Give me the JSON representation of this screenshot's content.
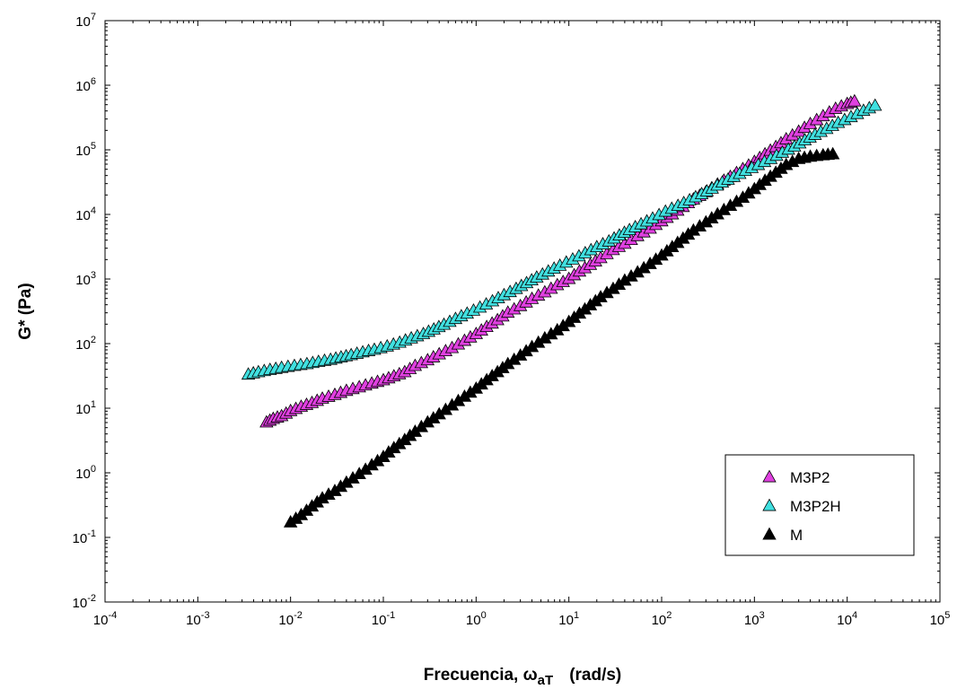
{
  "chart_data": {
    "type": "scatter",
    "title": "",
    "xlabel": "Frecuencia, ω",
    "xlabel_sub": "aT",
    "xlabel_units": "(rad/s)",
    "ylabel": "G* (Pa)",
    "xscale": "log",
    "yscale": "log",
    "xlim": [
      0.0001,
      100000
    ],
    "ylim": [
      0.01,
      10000000
    ],
    "x_ticks": [
      {
        "base": "10",
        "exp": "-4"
      },
      {
        "base": "10",
        "exp": "-3"
      },
      {
        "base": "10",
        "exp": "-2"
      },
      {
        "base": "10",
        "exp": "-1"
      },
      {
        "base": "10",
        "exp": "0"
      },
      {
        "base": "10",
        "exp": "1"
      },
      {
        "base": "10",
        "exp": "2"
      },
      {
        "base": "10",
        "exp": "3"
      },
      {
        "base": "10",
        "exp": "4"
      },
      {
        "base": "10",
        "exp": "5"
      }
    ],
    "y_ticks": [
      {
        "base": "10",
        "exp": "-2"
      },
      {
        "base": "10",
        "exp": "-1"
      },
      {
        "base": "10",
        "exp": "0"
      },
      {
        "base": "10",
        "exp": "1"
      },
      {
        "base": "10",
        "exp": "2"
      },
      {
        "base": "10",
        "exp": "3"
      },
      {
        "base": "10",
        "exp": "4"
      },
      {
        "base": "10",
        "exp": "5"
      },
      {
        "base": "10",
        "exp": "6"
      },
      {
        "base": "10",
        "exp": "7"
      }
    ],
    "grid": false,
    "legend_position": "bottom-right",
    "marker": "triangle",
    "series": [
      {
        "name": "M3P2",
        "color": "#e040e0",
        "points": [
          [
            0.0055,
            6
          ],
          [
            0.0065,
            6.8
          ],
          [
            0.008,
            7.5
          ],
          [
            0.01,
            9
          ],
          [
            0.013,
            10.5
          ],
          [
            0.017,
            12
          ],
          [
            0.022,
            14
          ],
          [
            0.03,
            16
          ],
          [
            0.04,
            18.5
          ],
          [
            0.055,
            21
          ],
          [
            0.075,
            24
          ],
          [
            0.1,
            27
          ],
          [
            0.13,
            31
          ],
          [
            0.17,
            36
          ],
          [
            0.22,
            45
          ],
          [
            0.3,
            55
          ],
          [
            0.4,
            68
          ],
          [
            0.55,
            85
          ],
          [
            0.75,
            110
          ],
          [
            1.0,
            140
          ],
          [
            1.3,
            180
          ],
          [
            1.7,
            230
          ],
          [
            2.2,
            300
          ],
          [
            3,
            380
          ],
          [
            4,
            490
          ],
          [
            5.5,
            620
          ],
          [
            7.5,
            800
          ],
          [
            10,
            1000
          ],
          [
            13,
            1300
          ],
          [
            17,
            1650
          ],
          [
            22,
            2100
          ],
          [
            30,
            2800
          ],
          [
            40,
            3500
          ],
          [
            55,
            4600
          ],
          [
            75,
            6000
          ],
          [
            100,
            7800
          ],
          [
            130,
            10000
          ],
          [
            170,
            13000
          ],
          [
            220,
            17000
          ],
          [
            300,
            22000
          ],
          [
            400,
            29000
          ],
          [
            550,
            38000
          ],
          [
            750,
            50000
          ],
          [
            1000,
            65000
          ],
          [
            1300,
            85000
          ],
          [
            1700,
            110000
          ],
          [
            2200,
            145000
          ],
          [
            3000,
            190000
          ],
          [
            4000,
            250000
          ],
          [
            5500,
            330000
          ],
          [
            7500,
            430000
          ],
          [
            10000,
            510000
          ],
          [
            12000,
            560000
          ]
        ]
      },
      {
        "name": "M3P2H",
        "color": "#40e0e0",
        "points": [
          [
            0.0035,
            33
          ],
          [
            0.0045,
            36
          ],
          [
            0.006,
            39
          ],
          [
            0.008,
            42
          ],
          [
            0.011,
            45
          ],
          [
            0.015,
            48
          ],
          [
            0.02,
            52
          ],
          [
            0.027,
            56
          ],
          [
            0.035,
            61
          ],
          [
            0.045,
            66
          ],
          [
            0.06,
            73
          ],
          [
            0.08,
            80
          ],
          [
            0.11,
            90
          ],
          [
            0.15,
            103
          ],
          [
            0.2,
            120
          ],
          [
            0.27,
            140
          ],
          [
            0.35,
            165
          ],
          [
            0.45,
            195
          ],
          [
            0.6,
            240
          ],
          [
            0.8,
            290
          ],
          [
            1.1,
            360
          ],
          [
            1.5,
            450
          ],
          [
            2,
            560
          ],
          [
            2.7,
            700
          ],
          [
            3.5,
            860
          ],
          [
            4.5,
            1050
          ],
          [
            6,
            1300
          ],
          [
            8,
            1600
          ],
          [
            11,
            2000
          ],
          [
            15,
            2500
          ],
          [
            20,
            3100
          ],
          [
            27,
            3800
          ],
          [
            35,
            4700
          ],
          [
            45,
            5700
          ],
          [
            60,
            7000
          ],
          [
            80,
            8600
          ],
          [
            110,
            11000
          ],
          [
            150,
            13500
          ],
          [
            200,
            16500
          ],
          [
            270,
            20500
          ],
          [
            350,
            25000
          ],
          [
            450,
            31000
          ],
          [
            600,
            38000
          ],
          [
            800,
            47000
          ],
          [
            1100,
            58000
          ],
          [
            1500,
            72000
          ],
          [
            2000,
            90000
          ],
          [
            2700,
            112000
          ],
          [
            3500,
            140000
          ],
          [
            4500,
            170000
          ],
          [
            6000,
            210000
          ],
          [
            8000,
            260000
          ],
          [
            11000,
            320000
          ],
          [
            15000,
            400000
          ],
          [
            20000,
            480000
          ]
        ]
      },
      {
        "name": "M",
        "color": "#000000",
        "points": [
          [
            0.01,
            0.17
          ],
          [
            0.013,
            0.22
          ],
          [
            0.017,
            0.3
          ],
          [
            0.022,
            0.4
          ],
          [
            0.03,
            0.52
          ],
          [
            0.04,
            0.7
          ],
          [
            0.055,
            0.95
          ],
          [
            0.075,
            1.3
          ],
          [
            0.1,
            1.75
          ],
          [
            0.13,
            2.4
          ],
          [
            0.17,
            3.2
          ],
          [
            0.22,
            4.3
          ],
          [
            0.3,
            6
          ],
          [
            0.4,
            8
          ],
          [
            0.55,
            11
          ],
          [
            0.75,
            15
          ],
          [
            1.0,
            20
          ],
          [
            1.3,
            27
          ],
          [
            1.7,
            36
          ],
          [
            2.2,
            48
          ],
          [
            3,
            65
          ],
          [
            4,
            88
          ],
          [
            5.5,
            120
          ],
          [
            7.5,
            160
          ],
          [
            10,
            215
          ],
          [
            13,
            290
          ],
          [
            17,
            390
          ],
          [
            22,
            520
          ],
          [
            30,
            700
          ],
          [
            40,
            940
          ],
          [
            55,
            1260
          ],
          [
            75,
            1700
          ],
          [
            100,
            2300
          ],
          [
            130,
            3100
          ],
          [
            170,
            4200
          ],
          [
            220,
            5600
          ],
          [
            300,
            7500
          ],
          [
            400,
            10000
          ],
          [
            550,
            13500
          ],
          [
            750,
            18000
          ],
          [
            1000,
            24500
          ],
          [
            1300,
            33000
          ],
          [
            1700,
            44000
          ],
          [
            2200,
            58000
          ],
          [
            3000,
            72000
          ],
          [
            4000,
            78000
          ],
          [
            5500,
            82000
          ],
          [
            7000,
            85000
          ]
        ]
      }
    ]
  }
}
